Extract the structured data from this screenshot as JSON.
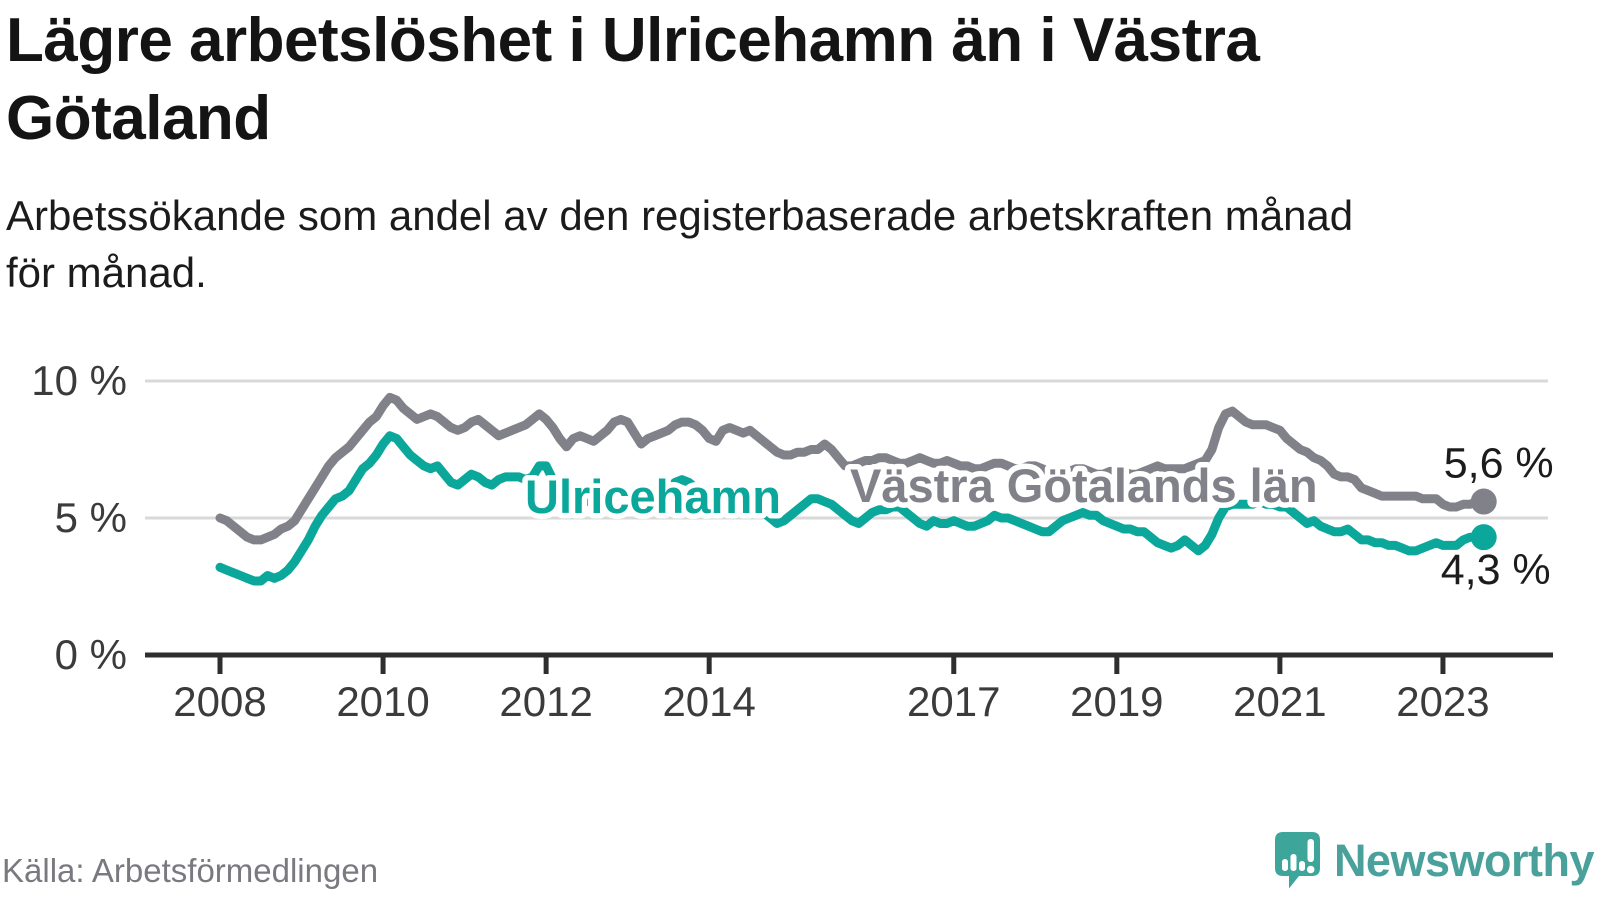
{
  "title_lines": [
    "Lägre arbetslöshet i Ulricehamn än i Västra",
    "Götaland"
  ],
  "subtitle_lines": [
    "Arbetssökande som andel av den registerbaserade arbetskraften månad",
    "för månad."
  ],
  "source": "Källa: Arbetsförmedlingen",
  "logo": {
    "brand": "Newsworthy",
    "icon": "newsworthy-speech-bubble-chart-icon",
    "icon_color": "#3ea59b",
    "text_color": "#4aa19c"
  },
  "chart_data": {
    "type": "line",
    "title": "Lägre arbetslöshet i Ulricehamn än i Västra Götaland",
    "subtitle": "Arbetssökande som andel av den registerbaserade arbetskraften månad för månad.",
    "unit": "%",
    "x_start_year": 2008,
    "x_end": "2023-07",
    "points_per_year": 12,
    "x_tick_years": [
      2008,
      2010,
      2012,
      2014,
      2017,
      2019,
      2021,
      2023
    ],
    "y_ticks": [
      {
        "value": 0,
        "label": "0 %"
      },
      {
        "value": 5,
        "label": "5 %"
      },
      {
        "value": 10,
        "label": "10 %"
      }
    ],
    "ylim": [
      0,
      10.5
    ],
    "grid": "horizontal",
    "legend": "inline-labels",
    "axis_color": "#2e2e2e",
    "grid_color": "#d9d9d9",
    "source": "Källa: Arbetsförmedlingen",
    "series": [
      {
        "name": "Västra Götalands län",
        "color": "#81818a",
        "end_label": "5,6 %",
        "end_value": 5.6,
        "values": [
          5.0,
          4.9,
          4.7,
          4.5,
          4.3,
          4.2,
          4.2,
          4.3,
          4.4,
          4.6,
          4.7,
          4.9,
          5.3,
          5.7,
          6.1,
          6.5,
          6.9,
          7.2,
          7.4,
          7.6,
          7.9,
          8.2,
          8.5,
          8.7,
          9.1,
          9.4,
          9.3,
          9.0,
          8.8,
          8.6,
          8.7,
          8.8,
          8.7,
          8.5,
          8.3,
          8.2,
          8.3,
          8.5,
          8.6,
          8.4,
          8.2,
          8.0,
          8.1,
          8.2,
          8.3,
          8.4,
          8.6,
          8.8,
          8.6,
          8.3,
          7.9,
          7.6,
          7.9,
          8.0,
          7.9,
          7.8,
          8.0,
          8.2,
          8.5,
          8.6,
          8.5,
          8.1,
          7.7,
          7.9,
          8.0,
          8.1,
          8.2,
          8.4,
          8.5,
          8.5,
          8.4,
          8.2,
          7.9,
          7.8,
          8.2,
          8.3,
          8.2,
          8.1,
          8.2,
          8.0,
          7.8,
          7.6,
          7.4,
          7.3,
          7.3,
          7.4,
          7.4,
          7.5,
          7.5,
          7.7,
          7.5,
          7.2,
          6.9,
          6.9,
          7.0,
          7.1,
          7.1,
          7.2,
          7.2,
          7.1,
          7.0,
          7.0,
          7.1,
          7.2,
          7.1,
          7.0,
          7.0,
          7.1,
          7.0,
          6.9,
          6.9,
          6.8,
          6.8,
          6.9,
          7.0,
          7.0,
          6.9,
          6.8,
          6.8,
          6.9,
          6.9,
          6.8,
          6.7,
          6.6,
          6.6,
          6.7,
          6.8,
          6.8,
          6.7,
          6.6,
          6.6,
          6.7,
          6.7,
          6.7,
          6.6,
          6.6,
          6.7,
          6.8,
          6.9,
          6.8,
          6.8,
          6.8,
          6.8,
          6.9,
          7.0,
          7.1,
          7.5,
          8.3,
          8.8,
          8.9,
          8.7,
          8.5,
          8.4,
          8.4,
          8.4,
          8.3,
          8.2,
          7.9,
          7.7,
          7.5,
          7.4,
          7.2,
          7.1,
          6.9,
          6.6,
          6.5,
          6.5,
          6.4,
          6.1,
          6.0,
          5.9,
          5.8,
          5.8,
          5.8,
          5.8,
          5.8,
          5.8,
          5.7,
          5.7,
          5.7,
          5.5,
          5.4,
          5.4,
          5.5,
          5.5,
          5.6,
          5.6
        ]
      },
      {
        "name": "Ulricehamn",
        "color": "#0ba79b",
        "end_label": "4,3 %",
        "end_value": 4.3,
        "values": [
          3.2,
          3.1,
          3.0,
          2.9,
          2.8,
          2.7,
          2.7,
          2.9,
          2.8,
          2.9,
          3.1,
          3.4,
          3.8,
          4.2,
          4.7,
          5.1,
          5.4,
          5.7,
          5.8,
          6.0,
          6.4,
          6.8,
          7.0,
          7.3,
          7.7,
          8.0,
          7.9,
          7.6,
          7.3,
          7.1,
          6.9,
          6.8,
          6.9,
          6.6,
          6.3,
          6.2,
          6.4,
          6.6,
          6.5,
          6.3,
          6.2,
          6.4,
          6.5,
          6.5,
          6.5,
          6.4,
          6.5,
          6.9,
          6.9,
          6.4,
          5.8,
          5.6,
          5.6,
          5.6,
          5.6,
          5.7,
          5.7,
          5.7,
          5.8,
          5.8,
          5.8,
          5.7,
          5.6,
          5.7,
          5.8,
          5.9,
          6.1,
          6.3,
          6.4,
          6.3,
          6.1,
          5.9,
          5.8,
          5.7,
          5.7,
          5.6,
          5.6,
          5.5,
          5.4,
          5.3,
          5.2,
          5.0,
          4.8,
          4.9,
          5.1,
          5.3,
          5.5,
          5.7,
          5.7,
          5.6,
          5.5,
          5.3,
          5.1,
          4.9,
          4.8,
          5.0,
          5.2,
          5.3,
          5.3,
          5.4,
          5.4,
          5.2,
          5.0,
          4.8,
          4.7,
          4.9,
          4.8,
          4.8,
          4.9,
          4.8,
          4.7,
          4.7,
          4.8,
          4.9,
          5.1,
          5.0,
          5.0,
          4.9,
          4.8,
          4.7,
          4.6,
          4.5,
          4.5,
          4.7,
          4.9,
          5.0,
          5.1,
          5.2,
          5.1,
          5.1,
          4.9,
          4.8,
          4.7,
          4.6,
          4.6,
          4.5,
          4.5,
          4.3,
          4.1,
          4.0,
          3.9,
          4.0,
          4.2,
          4.0,
          3.8,
          4.0,
          4.4,
          5.0,
          5.4,
          5.5,
          5.5,
          5.5,
          5.5,
          5.6,
          5.5,
          5.5,
          5.4,
          5.4,
          5.2,
          5.0,
          4.8,
          4.9,
          4.7,
          4.6,
          4.5,
          4.5,
          4.6,
          4.4,
          4.2,
          4.2,
          4.1,
          4.1,
          4.0,
          4.0,
          3.9,
          3.8,
          3.8,
          3.9,
          4.0,
          4.1,
          4.0,
          4.0,
          4.0,
          4.2,
          4.3,
          4.3,
          4.3
        ]
      }
    ]
  }
}
